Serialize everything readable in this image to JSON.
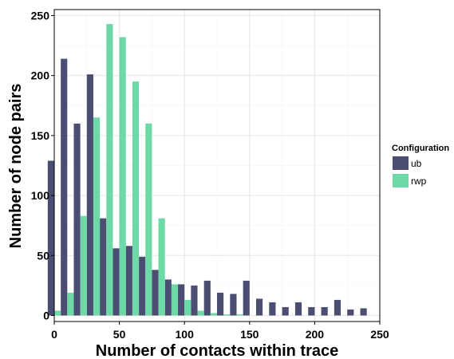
{
  "chart_data": {
    "type": "bar",
    "xlabel": "Number of contacts within trace",
    "ylabel": "Number of node pairs",
    "xlim": [
      0,
      250
    ],
    "ylim": [
      -5,
      255
    ],
    "xticks": [
      "0",
      "50",
      "100",
      "150",
      "200",
      "250"
    ],
    "yticks": [
      "0",
      "50",
      "100",
      "150",
      "200",
      "250"
    ],
    "bin_width": 10,
    "grid": true,
    "legend_title": "Configuration",
    "legend_position": "right",
    "series": [
      {
        "name": "ub",
        "color": "#4b4d72",
        "x": [
          0,
          10,
          20,
          30,
          40,
          50,
          60,
          70,
          80,
          90,
          100,
          110,
          120,
          130,
          140,
          150,
          160,
          170,
          180,
          190,
          200,
          210,
          220,
          230,
          240
        ],
        "values": [
          129,
          214,
          160,
          201,
          81,
          56,
          58,
          49,
          38,
          30,
          26,
          25,
          29,
          19,
          18,
          29,
          14,
          11,
          7,
          11,
          7,
          7,
          13,
          5,
          6
        ]
      },
      {
        "name": "rwp",
        "color": "#6dd9a7",
        "x": [
          0,
          10,
          20,
          30,
          40,
          50,
          60,
          70,
          80,
          90,
          100,
          110,
          120,
          130,
          140,
          150,
          160,
          170,
          180,
          190,
          200,
          210,
          220,
          230,
          240
        ],
        "values": [
          4,
          19,
          83,
          165,
          243,
          232,
          195,
          160,
          81,
          26,
          13,
          4,
          2,
          1,
          1,
          0,
          0,
          0,
          0,
          0,
          0,
          0,
          0,
          0,
          0
        ]
      }
    ]
  }
}
